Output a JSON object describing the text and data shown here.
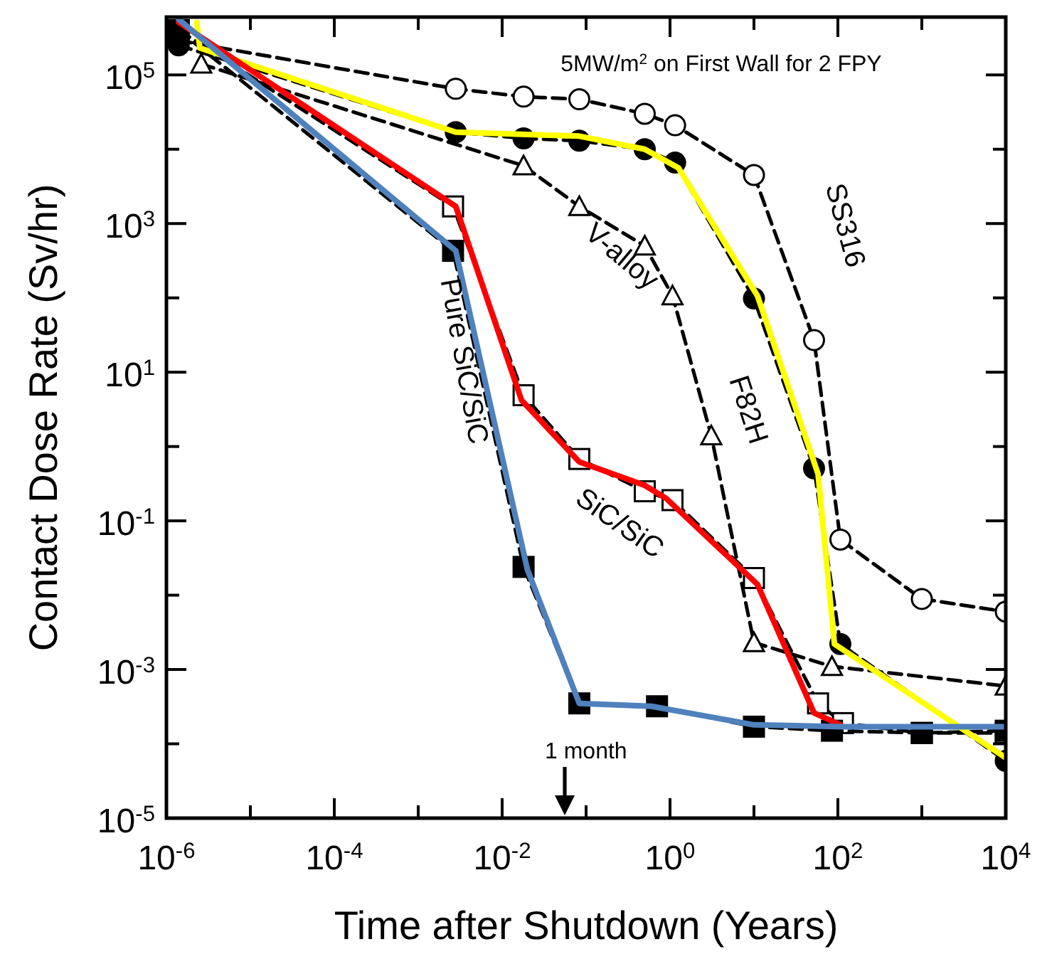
{
  "chart_data": {
    "type": "line",
    "xlabel": "Time after Shutdown (Years)",
    "ylabel": "Contact Dose Rate (Sv/hr)",
    "log": "xy",
    "xlim": [
      1e-06,
      10000
    ],
    "ylim": [
      1e-05,
      600000
    ],
    "xticks": [
      {
        "value": 1e-06,
        "label": "10$^{-6}$"
      },
      {
        "value": 1e-05,
        "label": null
      },
      {
        "value": 0.0001,
        "label": "10$^{-4}$"
      },
      {
        "value": 0.001,
        "label": null
      },
      {
        "value": 0.01,
        "label": "10$^{-2}$"
      },
      {
        "value": 0.1,
        "label": null
      },
      {
        "value": 1,
        "label": "10$^{0}$"
      },
      {
        "value": 10,
        "label": null
      },
      {
        "value": 100,
        "label": "10$^{2}$"
      },
      {
        "value": 1000,
        "label": null
      },
      {
        "value": 10000,
        "label": "10$^{4}$"
      }
    ],
    "yticks": [
      {
        "value": 1e-05,
        "label": "10$^{-5}$"
      },
      {
        "value": 0.0001,
        "label": null
      },
      {
        "value": 0.001,
        "label": "10$^{-3}$"
      },
      {
        "value": 0.01,
        "label": null
      },
      {
        "value": 0.1,
        "label": "10$^{-1}$"
      },
      {
        "value": 1,
        "label": null
      },
      {
        "value": 10,
        "label": "10$^{1}$"
      },
      {
        "value": 100,
        "label": null
      },
      {
        "value": 1000,
        "label": "10$^{3}$"
      },
      {
        "value": 10000,
        "label": null
      },
      {
        "value": 100000,
        "label": "10$^{5}$"
      }
    ],
    "grid": false,
    "annotations": [
      "5MW/m$^{2}$ on First Wall for 2 FPY",
      "1 month"
    ],
    "series": [
      {
        "name": "SS316",
        "color": "#000000",
        "marker": "circle",
        "line_style": "dashed",
        "x": [
          1.4e-06,
          0.0028,
          0.018,
          0.083,
          0.5,
          1.15,
          10,
          52,
          107,
          1000,
          10000
        ],
        "values": [
          290000,
          65000,
          51000,
          47000,
          30000,
          21000,
          4500,
          27,
          0.056,
          0.0089,
          0.006
        ]
      },
      {
        "name": "F82H",
        "color": "#000000",
        "marker": "circle",
        "line_style": "dashed",
        "x": [
          1.4e-06,
          0.0028,
          0.018,
          0.083,
          0.5,
          1.15,
          10,
          52,
          107,
          10000
        ],
        "values": [
          250000,
          17000,
          14000,
          13000,
          10000,
          6600,
          98,
          0.51,
          0.0022,
          5.9e-05
        ]
      },
      {
        "name": "V-alloy",
        "color": "#000000",
        "marker": "triangle",
        "line_style": "dashed",
        "x": [
          2.6e-06,
          0.018,
          0.083,
          0.5,
          1.07,
          3.1,
          10,
          85,
          10000
        ],
        "values": [
          140000,
          6000,
          1700,
          500,
          107,
          1.4,
          0.0023,
          0.0011,
          0.0006
        ]
      },
      {
        "name": "SiC/SiC",
        "color": "#000000",
        "marker": "square",
        "line_style": "dashed",
        "x": [
          1.4e-06,
          0.0026,
          0.018,
          0.083,
          0.5,
          1.07,
          10,
          58,
          115,
          1000,
          10000
        ],
        "values": [
          400000,
          1700,
          4.9,
          0.68,
          0.25,
          0.19,
          0.017,
          0.00035,
          0.00019,
          0.00014,
          0.00014
        ]
      },
      {
        "name": "Pure SiC/SiC",
        "color": "#000000",
        "marker": "square",
        "line_style": "dashed",
        "x": [
          1.4e-06,
          0.0026,
          0.018,
          0.083,
          0.7,
          10,
          85,
          1000,
          10000
        ],
        "values": [
          400000,
          430,
          0.024,
          0.00035,
          0.00032,
          0.00017,
          0.00015,
          0.00014,
          0.00015
        ]
      },
      {
        "color": "#ffff00",
        "marker": "none",
        "line_style": "solid",
        "x": [
          2.3e-06,
          2.5e-06,
          0.0028,
          0.083,
          0.5,
          1.26,
          11,
          58,
          91,
          10000
        ],
        "values": [
          510000,
          230000,
          17000,
          15000,
          10000,
          5600,
          107,
          0.43,
          0.0022,
          6.5e-05
        ]
      },
      {
        "color": "#ff0000",
        "marker": "none",
        "line_style": "solid",
        "x": [
          1.4e-06,
          0.0028,
          0.017,
          0.083,
          0.5,
          0.9,
          11,
          52,
          107
        ],
        "values": [
          510000,
          1700,
          4.2,
          0.62,
          0.3,
          0.2,
          0.014,
          0.00026,
          0.00018
        ]
      },
      {
        "color": "#4f81bd",
        "marker": "none",
        "line_style": "solid",
        "x": [
          1.4e-06,
          0.0028,
          0.02,
          0.083,
          0.6,
          10,
          115,
          10000
        ],
        "values": [
          560000,
          430,
          0.022,
          0.00035,
          0.00032,
          0.00018,
          0.00017,
          0.00017
        ]
      }
    ]
  }
}
